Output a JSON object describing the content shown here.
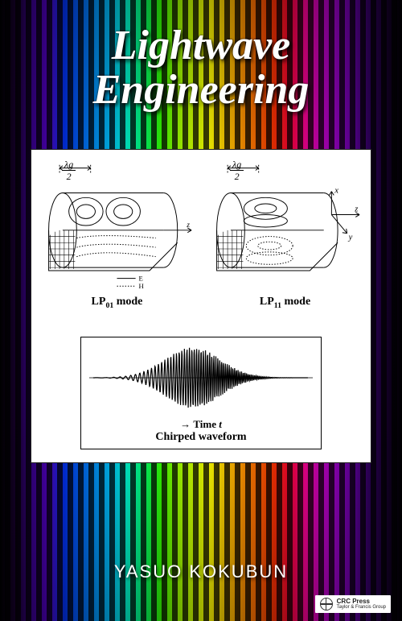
{
  "title": {
    "line1": "Lightwave",
    "line2": "Engineering",
    "fontsize": 52,
    "color": "#ffffff"
  },
  "author": {
    "text": "YASUO KOKUBUN",
    "fontsize": 22,
    "color": "#ffffff"
  },
  "publisher": {
    "name": "CRC Press",
    "tagline": "Taylor & Francis Group"
  },
  "panel": {
    "background": "#ffffff",
    "border": "#222222"
  },
  "figures": {
    "left": {
      "annotation_numerator": "λg",
      "annotation_denominator": "2",
      "label_prefix": "LP",
      "label_sub": "01",
      "label_suffix": " mode",
      "field_legend_e": "E",
      "field_legend_h": "H"
    },
    "right": {
      "annotation_numerator": "λg",
      "annotation_denominator": "2",
      "label_prefix": "LP",
      "label_sub": "11",
      "label_suffix": " mode",
      "axis_x": "x",
      "axis_y": "y",
      "axis_z": "z"
    }
  },
  "waveform": {
    "caption": "Chirped waveform",
    "time_arrow": "→",
    "time_label_prefix": "Time  ",
    "time_label_var": "t",
    "envelope_peak": 1.0,
    "stroke": "#000000"
  },
  "spectrum_colors": [
    "#000000",
    "#3d0099",
    "#0033ff",
    "#00ccff",
    "#00ff66",
    "#ccff00",
    "#ffcc00",
    "#ff3300",
    "#ff0099",
    "#6600aa",
    "#000000"
  ]
}
